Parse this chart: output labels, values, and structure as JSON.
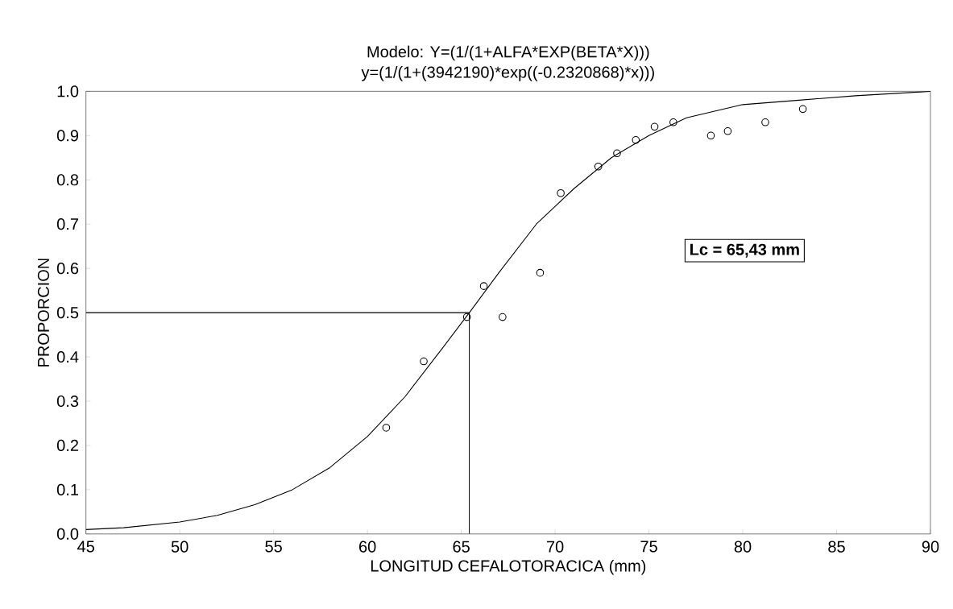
{
  "chart_data": {
    "type": "scatter",
    "title": "Modelo:  Y=(1/(1+ALFA*EXP(BETA*X)))",
    "subtitle": "y=(1/(1+(3942190)*exp((-0.2320868)*x)))",
    "xlabel": "LONGITUD CEFALOTORACICA (mm)",
    "ylabel": "PROPORCION",
    "annotations": [
      "Lc = 65,43 mm"
    ],
    "xlim": [
      45,
      90
    ],
    "ylim": [
      0,
      1
    ],
    "xticks": [
      45,
      50,
      55,
      60,
      65,
      70,
      75,
      80,
      85,
      90
    ],
    "yticks": [
      {
        "value": 0,
        "label": "0.0"
      },
      0.1,
      0.2,
      0.3,
      0.4,
      0.5,
      0.6,
      0.7,
      0.8,
      0.9,
      {
        "value": 1,
        "label": "1.0"
      }
    ],
    "series": [
      {
        "marker": "circle",
        "color": "#000000",
        "x": [
          61.0,
          63.0,
          65.3,
          66.2,
          67.2,
          69.2,
          70.3,
          72.3,
          73.3,
          74.3,
          75.3,
          76.3,
          78.3,
          79.2,
          81.2,
          83.2
        ],
        "values": [
          0.24,
          0.39,
          0.49,
          0.56,
          0.49,
          0.59,
          0.77,
          0.83,
          0.86,
          0.89,
          0.92,
          0.93,
          0.9,
          0.91,
          0.93,
          0.96
        ]
      },
      {
        "type": "line",
        "marker": "none",
        "color": "#000000",
        "x": [
          45,
          47,
          50,
          52,
          54,
          56,
          58,
          60,
          62,
          64,
          65.43,
          67,
          69,
          71,
          73,
          75,
          77,
          80,
          83,
          86,
          90
        ],
        "values": [
          0.01,
          0.014,
          0.027,
          0.042,
          0.066,
          0.1,
          0.15,
          0.22,
          0.31,
          0.42,
          0.5,
          0.59,
          0.7,
          0.78,
          0.85,
          0.9,
          0.94,
          0.97,
          0.98,
          0.99,
          1.0
        ]
      },
      {
        "type": "line",
        "marker": "none",
        "color": "#000000",
        "x": [
          45,
          65.43,
          65.43
        ],
        "values": [
          0.5,
          0.5,
          0
        ]
      }
    ]
  }
}
